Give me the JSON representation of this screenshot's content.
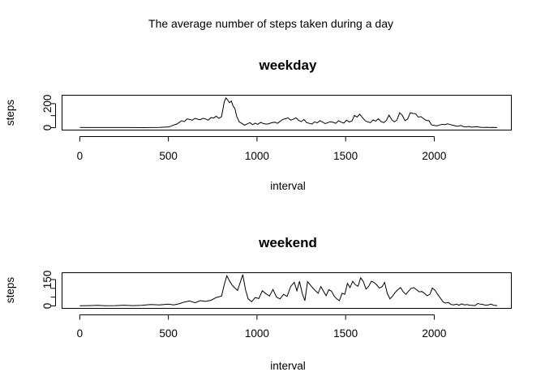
{
  "figure": {
    "title": "The average number of steps taken during a day"
  },
  "chart_data": [
    {
      "type": "line",
      "title": "weekday",
      "xlabel": "interval",
      "ylabel": "steps",
      "xlim": [
        -100,
        2435
      ],
      "ylim": [
        0,
        250
      ],
      "xticks": [
        0,
        500,
        1000,
        1500,
        2000
      ],
      "yticks": [
        0,
        100,
        200
      ],
      "ytick_labels": [
        "0",
        "",
        "200"
      ],
      "grid": false,
      "x": [
        0,
        50,
        100,
        150,
        200,
        250,
        300,
        350,
        400,
        450,
        500,
        515,
        530,
        545,
        560,
        575,
        590,
        605,
        620,
        635,
        650,
        665,
        680,
        695,
        710,
        725,
        740,
        755,
        770,
        785,
        800,
        815,
        825,
        835,
        845,
        855,
        865,
        875,
        885,
        900,
        915,
        930,
        945,
        960,
        975,
        990,
        1005,
        1020,
        1040,
        1060,
        1080,
        1100,
        1115,
        1130,
        1145,
        1160,
        1175,
        1190,
        1205,
        1220,
        1235,
        1250,
        1265,
        1280,
        1295,
        1310,
        1325,
        1340,
        1355,
        1370,
        1385,
        1400,
        1415,
        1430,
        1445,
        1460,
        1475,
        1490,
        1505,
        1520,
        1535,
        1550,
        1565,
        1580,
        1595,
        1610,
        1625,
        1640,
        1655,
        1670,
        1685,
        1700,
        1715,
        1730,
        1745,
        1760,
        1775,
        1790,
        1805,
        1820,
        1835,
        1850,
        1865,
        1880,
        1895,
        1910,
        1925,
        1940,
        1955,
        1970,
        1985,
        2000,
        2015,
        2030,
        2045,
        2060,
        2075,
        2090,
        2105,
        2120,
        2135,
        2150,
        2165,
        2180,
        2195,
        2210,
        2225,
        2240,
        2255,
        2270,
        2285,
        2300,
        2315,
        2330,
        2355
      ],
      "y": [
        2,
        1,
        1,
        1,
        1,
        1,
        1,
        0,
        1,
        2,
        6,
        12,
        22,
        28,
        42,
        58,
        50,
        72,
        68,
        62,
        78,
        70,
        66,
        78,
        72,
        62,
        84,
        80,
        95,
        78,
        92,
        215,
        248,
        230,
        208,
        222,
        180,
        160,
        95,
        48,
        35,
        20,
        32,
        42,
        24,
        38,
        28,
        44,
        32,
        30,
        40,
        46,
        36,
        52,
        68,
        74,
        82,
        62,
        70,
        82,
        60,
        50,
        68,
        42,
        36,
        30,
        48,
        40,
        58,
        46,
        34,
        42,
        50,
        44,
        36,
        58,
        46,
        38,
        62,
        48,
        54,
        102,
        88,
        112,
        84,
        58,
        48,
        42,
        64,
        55,
        74,
        50,
        42,
        60,
        104,
        66,
        48,
        64,
        124,
        102,
        58,
        72,
        124,
        118,
        116,
        88,
        92,
        74,
        60,
        58,
        22,
        18,
        14,
        22,
        28,
        24,
        32,
        26,
        20,
        14,
        12,
        18,
        8,
        6,
        10,
        4,
        6,
        8,
        4,
        2,
        2,
        3,
        1,
        2,
        1
      ],
      "ylim_note": ""
    },
    {
      "type": "line",
      "title": "weekend",
      "xlabel": "interval",
      "ylabel": "steps",
      "xlim": [
        -100,
        2435
      ],
      "ylim": [
        0,
        175
      ],
      "xticks": [
        0,
        500,
        1000,
        1500,
        2000
      ],
      "yticks": [
        0,
        50,
        100,
        150
      ],
      "ytick_labels": [
        "0",
        "",
        "",
        "150"
      ],
      "grid": false,
      "x": [
        0,
        50,
        100,
        150,
        200,
        250,
        300,
        350,
        400,
        450,
        500,
        530,
        560,
        590,
        620,
        650,
        680,
        710,
        740,
        770,
        800,
        815,
        830,
        845,
        860,
        875,
        890,
        905,
        920,
        935,
        950,
        970,
        990,
        1010,
        1030,
        1050,
        1070,
        1090,
        1110,
        1130,
        1150,
        1170,
        1190,
        1210,
        1225,
        1240,
        1255,
        1270,
        1285,
        1300,
        1315,
        1330,
        1345,
        1360,
        1375,
        1390,
        1405,
        1420,
        1435,
        1450,
        1465,
        1480,
        1495,
        1510,
        1525,
        1540,
        1555,
        1570,
        1585,
        1600,
        1615,
        1630,
        1645,
        1660,
        1675,
        1690,
        1705,
        1720,
        1735,
        1750,
        1765,
        1780,
        1795,
        1810,
        1825,
        1840,
        1855,
        1870,
        1885,
        1900,
        1915,
        1930,
        1945,
        1960,
        1975,
        1990,
        2005,
        2020,
        2035,
        2050,
        2065,
        2080,
        2095,
        2110,
        2125,
        2140,
        2155,
        2170,
        2185,
        2200,
        2215,
        2230,
        2245,
        2260,
        2275,
        2290,
        2305,
        2320,
        2335,
        2355
      ],
      "y": [
        1,
        2,
        3,
        1,
        2,
        4,
        2,
        3,
        8,
        6,
        10,
        6,
        12,
        22,
        28,
        18,
        30,
        26,
        32,
        48,
        56,
        120,
        172,
        142,
        118,
        102,
        88,
        132,
        178,
        92,
        40,
        24,
        48,
        42,
        86,
        70,
        56,
        94,
        50,
        40,
        66,
        54,
        110,
        134,
        86,
        140,
        72,
        30,
        138,
        120,
        102,
        86,
        72,
        110,
        84,
        58,
        92,
        84,
        56,
        40,
        30,
        72,
        66,
        128,
        104,
        140,
        120,
        112,
        160,
        138,
        96,
        112,
        140,
        134,
        120,
        102,
        108,
        134,
        72,
        40,
        56,
        78,
        92,
        104,
        80,
        66,
        84,
        100,
        104,
        92,
        80,
        82,
        72,
        58,
        66,
        102,
        88,
        64,
        44,
        22,
        16,
        20,
        8,
        6,
        10,
        4,
        12,
        6,
        8,
        4,
        3,
        2,
        14,
        10,
        8,
        4,
        6,
        10,
        4,
        2
      ]
    }
  ]
}
